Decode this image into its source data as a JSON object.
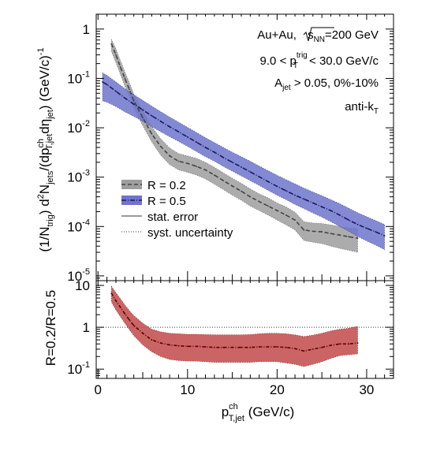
{
  "chart_data": [
    {
      "type": "line",
      "panel": "top",
      "ylabel_parts": [
        "(1/N",
        "trig",
        ") d",
        "2",
        "N",
        "jets",
        "/(dp",
        "ch",
        "T,jet",
        "dη",
        "jet",
        ")  (GeV/c)",
        "-1"
      ],
      "yscale": "log",
      "ylim": [
        8e-06,
        2
      ],
      "xlim": [
        -0.2,
        33
      ],
      "yticks": [
        {
          "v": 1,
          "b": "1",
          "e": ""
        },
        {
          "v": 0.1,
          "b": "10",
          "e": "-1"
        },
        {
          "v": 0.01,
          "b": "10",
          "e": "-2"
        },
        {
          "v": 0.001,
          "b": "10",
          "e": "-3"
        },
        {
          "v": 0.0001,
          "b": "10",
          "e": "-4"
        },
        {
          "v": 1e-05,
          "b": "10",
          "e": "-5"
        }
      ],
      "annotations": {
        "l1": "Au+Au, ",
        "l1_s": "s",
        "l1_nn": "NN",
        "l1_val": "=200 GeV",
        "l2_a": "9.0 < p",
        "l2_sup": "trig",
        "l2_sub": "T",
        "l2_b": " < 30.0 GeV/c",
        "l3_a": "A",
        "l3_sub": "jet",
        "l3_b": " > 0.05, 0%-10%",
        "l4_a": "anti-k",
        "l4_sub": "T"
      },
      "legend": {
        "position": "lower-left",
        "entries": [
          "R = 0.2",
          "R = 0.5",
          "stat. error",
          "syst. uncertainty"
        ]
      },
      "series": [
        {
          "name": "R = 0.2",
          "color": "#444444",
          "band_color": "#9e9e9e",
          "x": [
            1.5,
            2.0,
            2.5,
            3.0,
            3.5,
            4.0,
            5.0,
            6.0,
            7.0,
            8.0,
            9.0,
            10.0,
            11.0,
            12.0,
            13.0,
            14.0,
            15.0,
            16.0,
            17.0,
            18.0,
            19.0,
            20.0,
            21.0,
            22.0,
            23.0,
            24.0,
            25.0,
            26.0,
            27.0,
            28.0,
            29.0
          ],
          "y": [
            0.5,
            0.3,
            0.17,
            0.1,
            0.06,
            0.035,
            0.016,
            0.0075,
            0.0042,
            0.0027,
            0.0021,
            0.0019,
            0.00165,
            0.0014,
            0.0011,
            0.00085,
            0.00066,
            0.00052,
            0.0004,
            0.00032,
            0.00026,
            0.00021,
            0.00017,
            0.000135,
            8.5e-05,
            8e-05,
            7.8e-05,
            7.2e-05,
            6.7e-05,
            6.2e-05,
            5.8e-05
          ],
          "band_lo": [
            0.35,
            0.21,
            0.12,
            0.07,
            0.042,
            0.025,
            0.011,
            0.0052,
            0.0028,
            0.0018,
            0.0014,
            0.00125,
            0.0011,
            0.00092,
            0.00072,
            0.00056,
            0.00043,
            0.00034,
            0.00026,
            0.00021,
            0.00017,
            0.000135,
            0.000108,
            8.5e-05,
            5.2e-05,
            4.8e-05,
            4.5e-05,
            4e-05,
            3.6e-05,
            3.3e-05,
            3e-05
          ],
          "band_hi": [
            0.62,
            0.4,
            0.23,
            0.135,
            0.082,
            0.048,
            0.022,
            0.0105,
            0.006,
            0.0039,
            0.003,
            0.0027,
            0.0024,
            0.002,
            0.00158,
            0.00122,
            0.00095,
            0.00075,
            0.00058,
            0.00046,
            0.00038,
            0.0003,
            0.00025,
            0.000195,
            0.000125,
            0.000118,
            0.000115,
            0.000108,
            0.0001,
            9.4e-05,
            9e-05
          ]
        },
        {
          "name": "R = 0.5",
          "color": "#1a1a5c",
          "band_color": "#6f74cc",
          "x": [
            0.5,
            1.0,
            2.0,
            3.0,
            4.0,
            5.0,
            6.0,
            7.0,
            8.0,
            9.0,
            10.0,
            11.0,
            12.0,
            13.0,
            14.0,
            15.0,
            16.0,
            17.0,
            18.0,
            19.0,
            20.0,
            21.0,
            22.0,
            23.0,
            24.0,
            25.0,
            26.0,
            27.0,
            28.0,
            29.0,
            30.0,
            31.0,
            32.0
          ],
          "y": [
            0.085,
            0.075,
            0.055,
            0.04,
            0.03,
            0.023,
            0.0175,
            0.0135,
            0.0105,
            0.0083,
            0.0065,
            0.0051,
            0.004,
            0.0032,
            0.0025,
            0.002,
            0.0016,
            0.00128,
            0.00102,
            0.00081,
            0.00065,
            0.00053,
            0.00043,
            0.00036,
            0.0003,
            0.00025,
            0.00021,
            0.00017,
            0.000135,
            0.00011,
            9.2e-05,
            7.8e-05,
            6.5e-05
          ],
          "band_lo": [
            0.035,
            0.033,
            0.027,
            0.021,
            0.017,
            0.0135,
            0.0105,
            0.0083,
            0.0066,
            0.0053,
            0.0042,
            0.0033,
            0.0026,
            0.0021,
            0.00165,
            0.00132,
            0.00106,
            0.00085,
            0.00068,
            0.00054,
            0.00043,
            0.00035,
            0.00028,
            0.00023,
            0.000188,
            0.000155,
            0.000125,
            0.0001,
            8e-05,
            6.3e-05,
            5.1e-05,
            4.2e-05,
            3.4e-05
          ],
          "band_hi": [
            0.13,
            0.115,
            0.085,
            0.062,
            0.047,
            0.036,
            0.0275,
            0.0212,
            0.0165,
            0.013,
            0.0102,
            0.008,
            0.0063,
            0.005,
            0.004,
            0.0032,
            0.0026,
            0.0021,
            0.00168,
            0.00135,
            0.00109,
            0.00089,
            0.00073,
            0.0006,
            0.0005,
            0.00042,
            0.00035,
            0.00029,
            0.000235,
            0.00019,
            0.000158,
            0.000132,
            0.00011
          ]
        }
      ]
    },
    {
      "type": "line",
      "panel": "bottom",
      "ylabel": "R=0.2/R=0.5",
      "xlabel_main": "p",
      "xlabel_sup": "ch",
      "xlabel_sub": "T,jet",
      "xlabel_unit": "  (GeV/c)",
      "yscale": "log",
      "ylim": [
        0.06,
        13
      ],
      "xlim": [
        -0.2,
        33
      ],
      "reference_line": 1,
      "xticks": [
        0,
        10,
        20,
        30
      ],
      "yticks": [
        {
          "v": 10,
          "b": "10",
          "e": ""
        },
        {
          "v": 1,
          "b": "1",
          "e": ""
        },
        {
          "v": 0.1,
          "b": "10",
          "e": "-1"
        }
      ],
      "series": [
        {
          "name": "R=0.2/R=0.5",
          "color": "#5a0000",
          "band_color": "#c24a4a",
          "x": [
            1.5,
            2.0,
            2.5,
            3.0,
            3.5,
            4.0,
            5.0,
            6.0,
            7.0,
            8.0,
            9.0,
            10.0,
            11.0,
            12.0,
            13.0,
            14.0,
            15.0,
            16.0,
            17.0,
            18.0,
            19.0,
            20.0,
            21.0,
            22.0,
            23.0,
            24.0,
            25.0,
            26.0,
            27.0,
            28.0,
            29.0
          ],
          "y": [
            6.5,
            4.3,
            3.0,
            2.1,
            1.5,
            1.1,
            0.72,
            0.5,
            0.42,
            0.38,
            0.36,
            0.35,
            0.35,
            0.34,
            0.33,
            0.33,
            0.33,
            0.33,
            0.33,
            0.34,
            0.34,
            0.34,
            0.33,
            0.31,
            0.27,
            0.3,
            0.33,
            0.37,
            0.4,
            0.4,
            0.42
          ],
          "band_lo": [
            4.0,
            2.6,
            1.8,
            1.25,
            0.88,
            0.63,
            0.38,
            0.26,
            0.2,
            0.17,
            0.16,
            0.155,
            0.155,
            0.15,
            0.145,
            0.145,
            0.145,
            0.145,
            0.145,
            0.15,
            0.15,
            0.15,
            0.14,
            0.13,
            0.115,
            0.13,
            0.15,
            0.18,
            0.21,
            0.22,
            0.23
          ],
          "band_hi": [
            9.5,
            6.7,
            4.8,
            3.4,
            2.5,
            1.9,
            1.25,
            0.9,
            0.78,
            0.72,
            0.7,
            0.68,
            0.68,
            0.67,
            0.66,
            0.66,
            0.66,
            0.66,
            0.67,
            0.7,
            0.72,
            0.72,
            0.7,
            0.66,
            0.6,
            0.65,
            0.72,
            0.82,
            0.9,
            0.95,
            1.05
          ]
        }
      ]
    }
  ]
}
